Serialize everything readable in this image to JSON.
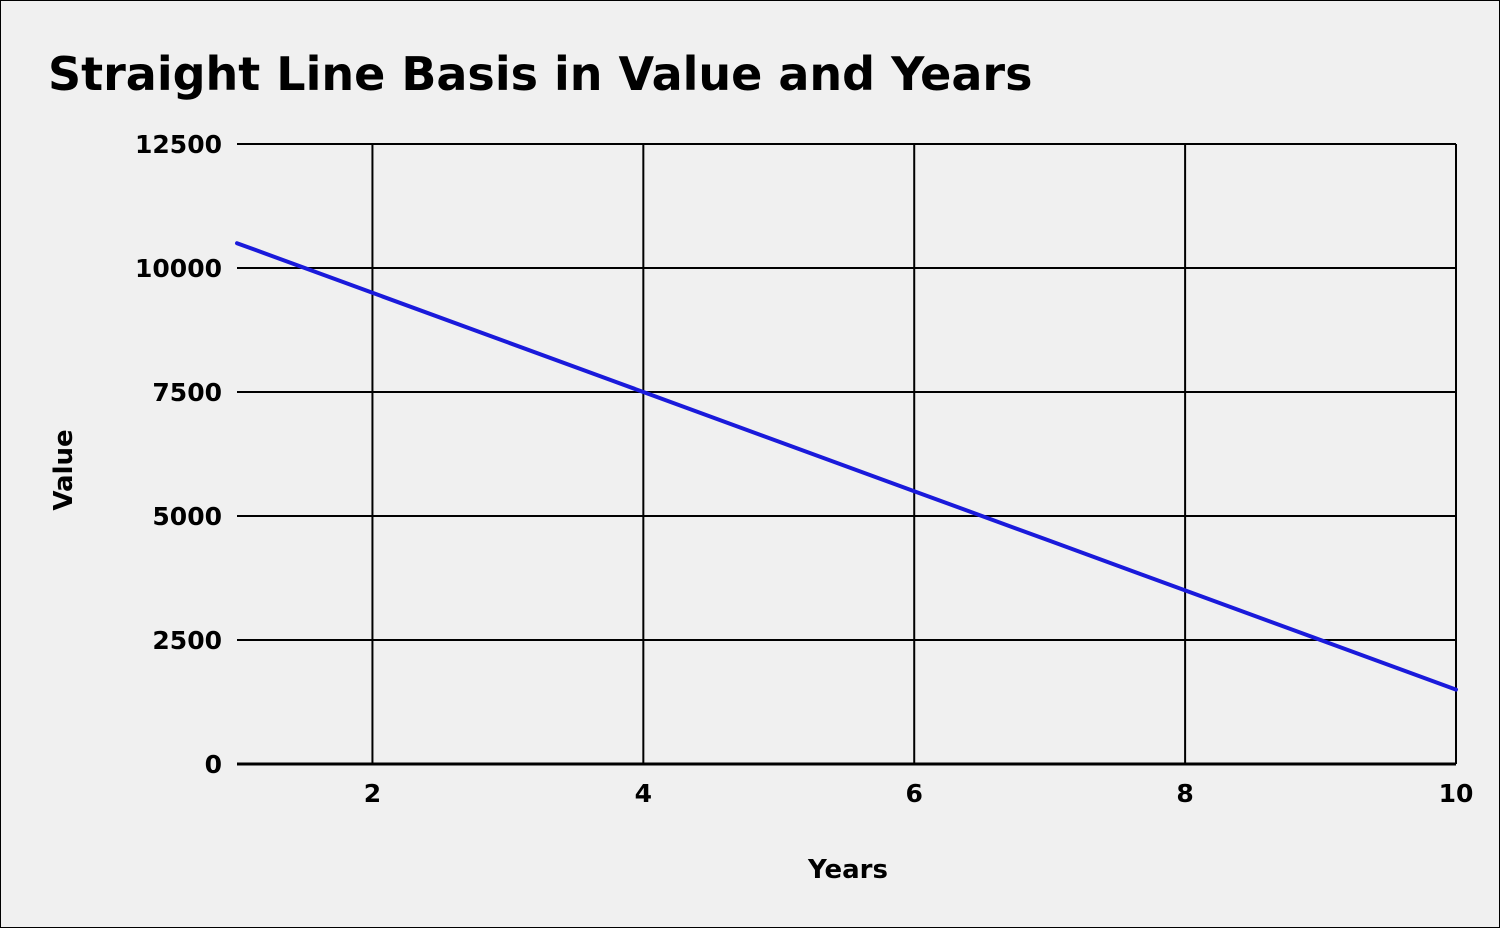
{
  "chart_data": {
    "type": "line",
    "title": "Straight Line Basis in Value and Years",
    "xlabel": "Years",
    "ylabel": "Value",
    "xlim": [
      1,
      10
    ],
    "ylim": [
      0,
      12500
    ],
    "x_ticks": [
      2,
      4,
      6,
      8,
      10
    ],
    "y_ticks": [
      0,
      2500,
      5000,
      7500,
      10000,
      12500
    ],
    "grid": true,
    "series": [
      {
        "x": [
          1,
          2,
          3,
          4,
          5,
          6,
          7,
          8,
          9,
          10
        ],
        "values": [
          10500,
          9500,
          8500,
          7500,
          6500,
          5500,
          4500,
          3500,
          2500,
          1500
        ],
        "color": "#1a1adb"
      }
    ]
  }
}
